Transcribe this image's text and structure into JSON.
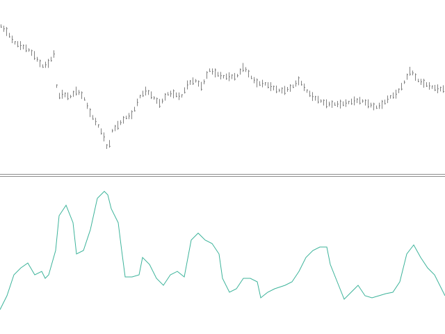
{
  "chart_data": [
    {
      "type": "ohlc",
      "panel": "price",
      "color": "#808080",
      "grid": false,
      "ylim": [
        0,
        250
      ],
      "x": [
        0,
        10,
        20,
        30,
        40,
        50,
        60,
        70,
        78,
        82,
        90,
        100,
        110,
        120,
        130,
        140,
        150,
        155,
        160,
        170,
        180,
        190,
        200,
        210,
        220,
        230,
        240,
        250,
        260,
        270,
        280,
        290,
        300,
        310,
        320,
        330,
        340,
        350,
        360,
        370,
        380,
        390,
        400,
        410,
        420,
        430,
        440,
        450,
        460,
        470,
        480,
        490,
        500,
        510,
        520,
        530,
        540,
        550,
        560,
        570,
        580,
        590,
        600,
        610,
        620,
        630,
        640
      ],
      "values": [
        215,
        205,
        190,
        185,
        180,
        170,
        155,
        160,
        175,
        110,
        115,
        110,
        120,
        110,
        85,
        70,
        50,
        30,
        60,
        70,
        80,
        85,
        110,
        120,
        110,
        100,
        115,
        115,
        110,
        130,
        135,
        125,
        150,
        145,
        140,
        140,
        140,
        155,
        140,
        130,
        130,
        125,
        120,
        120,
        125,
        135,
        120,
        110,
        105,
        100,
        100,
        100,
        102,
        105,
        105,
        100,
        95,
        100,
        110,
        115,
        130,
        150,
        135,
        130,
        125,
        122,
        122
      ]
    },
    {
      "type": "line",
      "panel": "indicator",
      "color": "#3cb39a",
      "grid": false,
      "ylim": [
        0,
        225
      ],
      "x": [
        0,
        10,
        20,
        30,
        40,
        50,
        60,
        65,
        70,
        80,
        85,
        95,
        105,
        110,
        120,
        130,
        140,
        150,
        155,
        160,
        170,
        175,
        180,
        190,
        200,
        205,
        215,
        225,
        235,
        245,
        255,
        265,
        275,
        285,
        295,
        305,
        315,
        320,
        330,
        340,
        350,
        360,
        370,
        375,
        385,
        395,
        410,
        420,
        430,
        440,
        450,
        460,
        470,
        475,
        485,
        495,
        505,
        515,
        525,
        535,
        545,
        555,
        565,
        575,
        585,
        595,
        605,
        615,
        625,
        640
      ],
      "values": [
        35,
        55,
        85,
        95,
        102,
        85,
        90,
        80,
        85,
        120,
        170,
        185,
        160,
        115,
        120,
        150,
        195,
        205,
        200,
        180,
        160,
        120,
        82,
        82,
        85,
        110,
        100,
        80,
        70,
        85,
        90,
        82,
        135,
        145,
        135,
        130,
        115,
        80,
        60,
        65,
        80,
        80,
        75,
        52,
        60,
        65,
        70,
        75,
        90,
        110,
        120,
        125,
        125,
        100,
        75,
        50,
        60,
        70,
        55,
        52,
        55,
        58,
        60,
        75,
        115,
        128,
        110,
        95,
        85,
        55
      ]
    }
  ]
}
